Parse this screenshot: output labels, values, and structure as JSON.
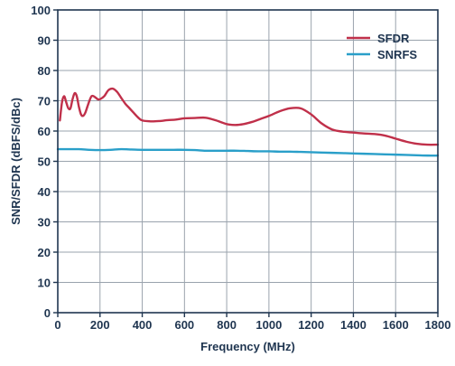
{
  "chart_data": {
    "type": "line",
    "title": "",
    "xlabel": "Frequency (MHz)",
    "ylabel": "SNR/SFDR (dBFS/dBc)",
    "xlim": [
      0,
      1800
    ],
    "ylim": [
      0,
      100
    ],
    "x_ticks": [
      0,
      200,
      400,
      600,
      800,
      1000,
      1200,
      1400,
      1600,
      1800
    ],
    "y_ticks": [
      0,
      10,
      20,
      30,
      40,
      50,
      60,
      70,
      80,
      90,
      100
    ],
    "grid": true,
    "legend_position": "top-right",
    "series": [
      {
        "name": "SFDR",
        "color": "#c0304a",
        "x": [
          10,
          20,
          30,
          40,
          50,
          60,
          70,
          80,
          90,
          100,
          110,
          120,
          130,
          140,
          150,
          160,
          170,
          180,
          190,
          200,
          220,
          240,
          260,
          280,
          300,
          320,
          340,
          360,
          380,
          400,
          440,
          480,
          520,
          560,
          600,
          650,
          700,
          750,
          800,
          840,
          880,
          920,
          960,
          1000,
          1050,
          1100,
          1150,
          1200,
          1250,
          1300,
          1350,
          1400,
          1450,
          1500,
          1550,
          1600,
          1650,
          1700,
          1750,
          1800
        ],
        "y": [
          63.5,
          69.5,
          71.5,
          69.5,
          67.5,
          67.5,
          70.5,
          72.5,
          71.5,
          68.0,
          65.5,
          65.0,
          66.0,
          68.0,
          70.0,
          71.5,
          71.5,
          71.0,
          70.5,
          70.5,
          71.5,
          73.5,
          74.0,
          73.0,
          71.0,
          69.0,
          67.5,
          66.0,
          64.5,
          63.5,
          63.2,
          63.3,
          63.6,
          63.8,
          64.2,
          64.3,
          64.4,
          63.5,
          62.3,
          62.0,
          62.3,
          63.0,
          64.0,
          65.0,
          66.5,
          67.5,
          67.5,
          65.5,
          62.5,
          60.5,
          59.8,
          59.5,
          59.2,
          59.0,
          58.5,
          57.5,
          56.5,
          55.8,
          55.5,
          55.5
        ],
        "x_start_override": 0
      },
      {
        "name": "SNRFS",
        "color": "#2a9fc9",
        "x": [
          0,
          50,
          100,
          150,
          200,
          250,
          300,
          350,
          400,
          450,
          500,
          550,
          600,
          650,
          700,
          750,
          800,
          850,
          900,
          950,
          1000,
          1050,
          1100,
          1150,
          1200,
          1250,
          1300,
          1350,
          1400,
          1450,
          1500,
          1550,
          1600,
          1650,
          1700,
          1750,
          1800
        ],
        "y": [
          54.0,
          54.0,
          54.0,
          53.8,
          53.7,
          53.8,
          54.0,
          53.9,
          53.8,
          53.8,
          53.8,
          53.8,
          53.8,
          53.7,
          53.5,
          53.5,
          53.5,
          53.5,
          53.4,
          53.3,
          53.3,
          53.2,
          53.2,
          53.1,
          53.0,
          52.9,
          52.8,
          52.7,
          52.6,
          52.5,
          52.4,
          52.3,
          52.2,
          52.1,
          52.0,
          51.9,
          51.9
        ]
      }
    ]
  }
}
